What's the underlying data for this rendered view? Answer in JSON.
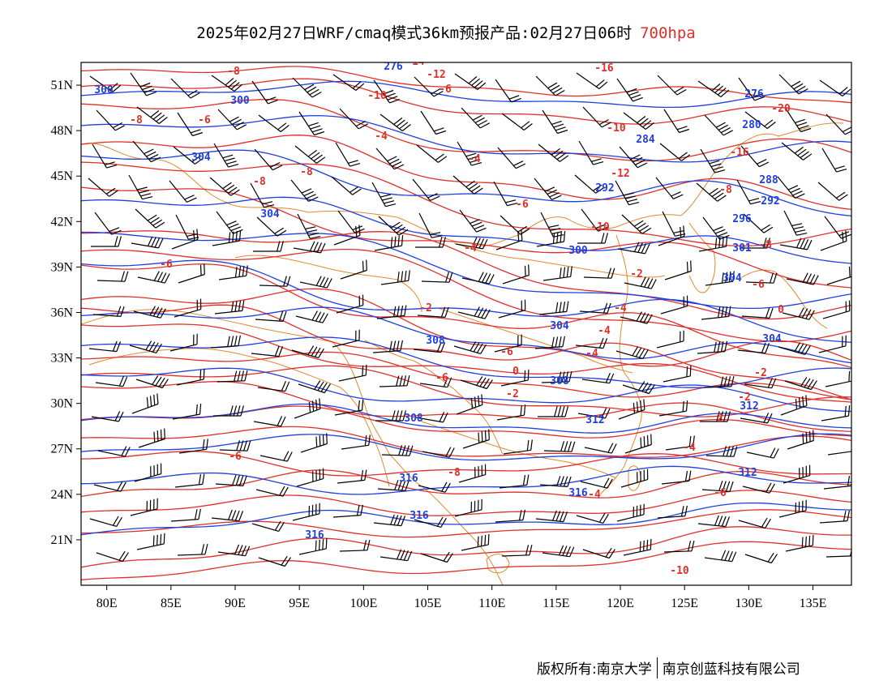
{
  "title": "2025年02月27日WRF/cmaq模式36km预报产品:02月27日06时",
  "level": "700hpa",
  "credits": {
    "copyright": "版权所有:南京大学",
    "company": "南京创蓝科技有限公司"
  },
  "colors": {
    "temperature": "#e0302a",
    "geopotential": "#1f3fe0",
    "border": "#e08a30",
    "wind": "#000000",
    "title_level": "#e0302a"
  },
  "axes": {
    "lon_ticks": [
      "80E",
      "85E",
      "90E",
      "95E",
      "100E",
      "105E",
      "110E",
      "115E",
      "120E",
      "125E",
      "130E",
      "135E"
    ],
    "lat_ticks": [
      "51N",
      "48N",
      "45N",
      "42N",
      "39N",
      "36N",
      "33N",
      "30N",
      "27N",
      "24N",
      "21N"
    ],
    "lon_range": [
      78,
      138
    ],
    "lat_range": [
      18,
      52.5
    ]
  },
  "temperature_labels": [
    "-14",
    "-16",
    "-12",
    "-8",
    "-10",
    "-6",
    "-20",
    "-10",
    "-8",
    "-6",
    "-4",
    "-16",
    "-4",
    "-12",
    "-8",
    "-8",
    "-8",
    "-6",
    "-10",
    "-4",
    "-8",
    "-6",
    "-2",
    "-6",
    "-4",
    "0",
    "-2",
    "-4",
    "-6",
    "-4",
    "-2",
    "-6",
    "0",
    "-2",
    "-2",
    "2",
    "-6",
    "-4",
    "-8",
    "-6",
    "-4",
    "-10"
  ],
  "height_labels": [
    "276",
    "300",
    "300",
    "276",
    "280",
    "284",
    "304",
    "288",
    "292",
    "292",
    "304",
    "296",
    "300",
    "301",
    "304",
    "304",
    "308",
    "304",
    "308",
    "308",
    "312",
    "312",
    "316",
    "312",
    "316",
    "316",
    "316"
  ],
  "icons": {
    "wind": "wind-barb-icon"
  }
}
